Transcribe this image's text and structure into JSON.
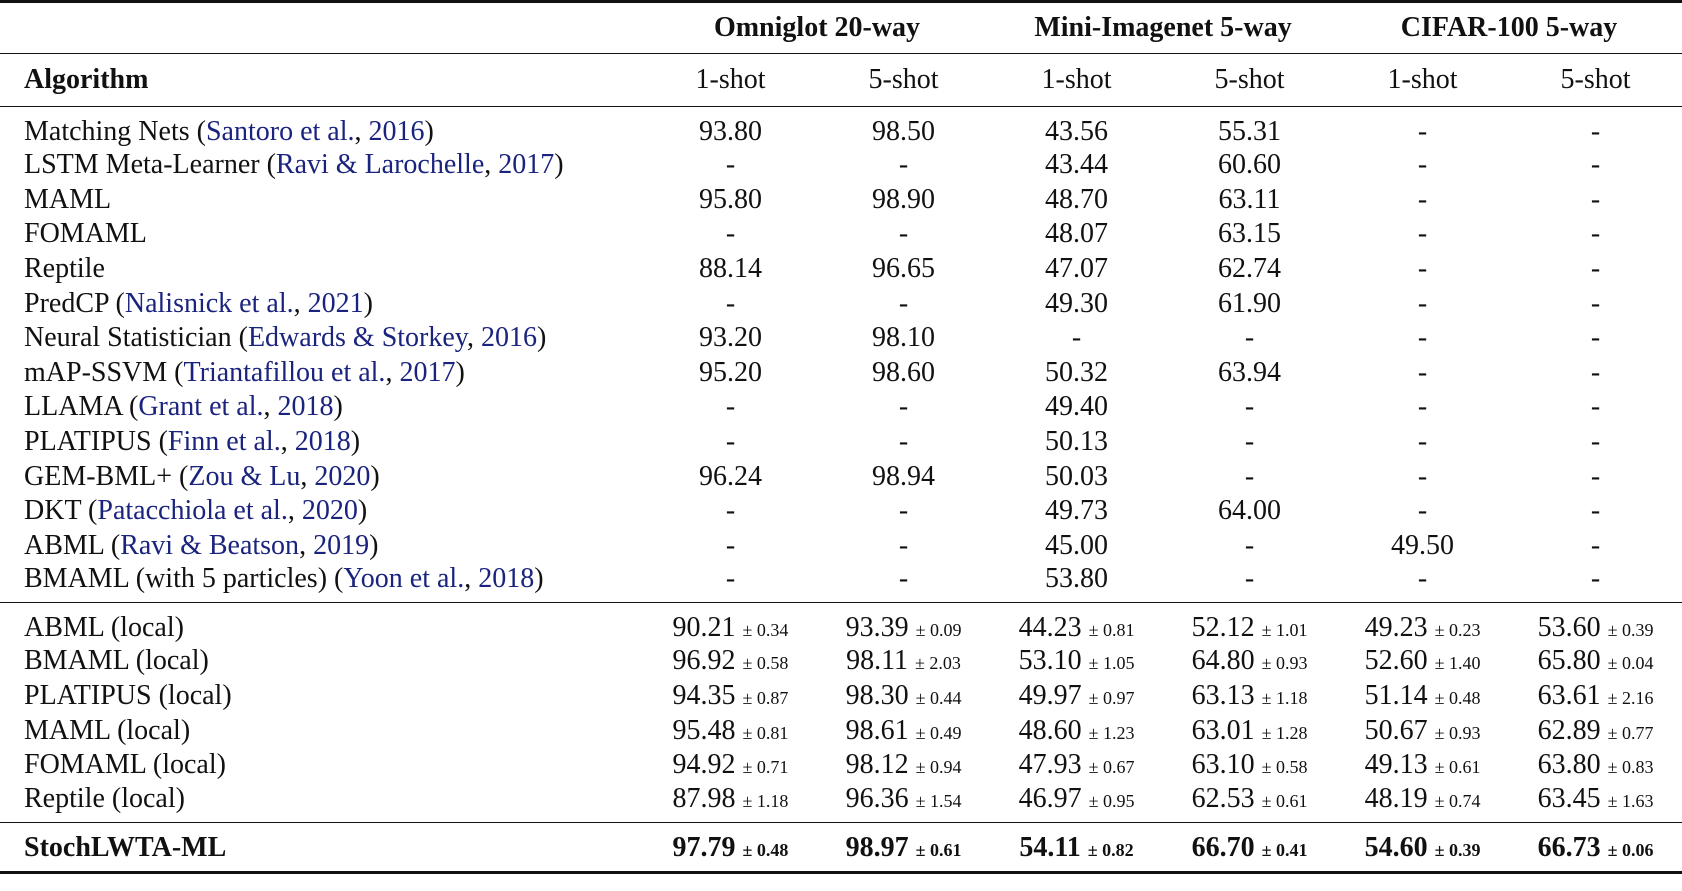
{
  "table": {
    "group_headers": [
      "Omniglot 20-way",
      "Mini-Imagenet 5-way",
      "CIFAR-100 5-way"
    ],
    "algorithm_header": "Algorithm",
    "shot_headers": [
      "1-shot",
      "5-shot",
      "1-shot",
      "5-shot",
      "1-shot",
      "5-shot"
    ],
    "sections": [
      {
        "rows": [
          {
            "method": "Matching Nets",
            "citation": {
              "authors": "Santoro et al.",
              "year": "2016"
            },
            "cells": [
              "93.80",
              "98.50",
              "43.56",
              "55.31",
              "-",
              "-"
            ]
          },
          {
            "method": "LSTM Meta-Learner",
            "citation": {
              "authors": "Ravi & Larochelle",
              "year": "2017"
            },
            "cells": [
              "-",
              "-",
              "43.44",
              "60.60",
              "-",
              "-"
            ]
          },
          {
            "method": "MAML",
            "cells": [
              "95.80",
              "98.90",
              "48.70",
              "63.11",
              "-",
              "-"
            ]
          },
          {
            "method": "FOMAML",
            "cells": [
              "-",
              "-",
              "48.07",
              "63.15",
              "-",
              "-"
            ]
          },
          {
            "method": "Reptile",
            "cells": [
              "88.14",
              "96.65",
              "47.07",
              "62.74",
              "-",
              "-"
            ]
          },
          {
            "method": "PredCP",
            "citation": {
              "authors": "Nalisnick et al.",
              "year": "2021"
            },
            "cells": [
              "-",
              "-",
              "49.30",
              "61.90",
              "-",
              "-"
            ]
          },
          {
            "method": "Neural Statistician",
            "citation": {
              "authors": "Edwards & Storkey",
              "year": "2016"
            },
            "cells": [
              "93.20",
              "98.10",
              "-",
              "-",
              "-",
              "-"
            ]
          },
          {
            "method": "mAP-SSVM",
            "citation": {
              "authors": "Triantafillou et al.",
              "year": "2017"
            },
            "cells": [
              "95.20",
              "98.60",
              "50.32",
              "63.94",
              "-",
              "-"
            ]
          },
          {
            "method": "LLAMA",
            "citation": {
              "authors": "Grant et al.",
              "year": "2018"
            },
            "cells": [
              "-",
              "-",
              "49.40",
              "-",
              "-",
              "-"
            ]
          },
          {
            "method": "PLATIPUS",
            "citation": {
              "authors": "Finn et al.",
              "year": "2018"
            },
            "cells": [
              "-",
              "-",
              "50.13",
              "-",
              "-",
              "-"
            ]
          },
          {
            "method": "GEM-BML+",
            "citation": {
              "authors": "Zou & Lu",
              "year": "2020"
            },
            "cells": [
              "96.24",
              "98.94",
              "50.03",
              "-",
              "-",
              "-"
            ]
          },
          {
            "method": "DKT",
            "citation": {
              "authors": "Patacchiola et al.",
              "year": "2020"
            },
            "cells": [
              "-",
              "-",
              "49.73",
              "64.00",
              "-",
              "-"
            ]
          },
          {
            "method": "ABML",
            "citation": {
              "authors": "Ravi & Beatson",
              "year": "2019"
            },
            "cells": [
              "-",
              "-",
              "45.00",
              "-",
              "49.50",
              "-"
            ]
          },
          {
            "method": "BMAML (with 5 particles)",
            "citation": {
              "authors": "Yoon et al.",
              "year": "2018"
            },
            "cells": [
              "-",
              "-",
              "53.80",
              "-",
              "-",
              "-"
            ]
          }
        ]
      },
      {
        "rows": [
          {
            "method": "ABML (local)",
            "cells": [
              {
                "value": "90.21",
                "std": "± 0.34"
              },
              {
                "value": "93.39",
                "std": "± 0.09"
              },
              {
                "value": "44.23",
                "std": "± 0.81"
              },
              {
                "value": "52.12",
                "std": "± 1.01"
              },
              {
                "value": "49.23",
                "std": "± 0.23"
              },
              {
                "value": "53.60",
                "std": "± 0.39"
              }
            ]
          },
          {
            "method": "BMAML (local)",
            "cells": [
              {
                "value": "96.92",
                "std": "± 0.58"
              },
              {
                "value": "98.11",
                "std": "± 2.03"
              },
              {
                "value": "53.10",
                "std": "± 1.05"
              },
              {
                "value": "64.80",
                "std": "± 0.93"
              },
              {
                "value": "52.60",
                "std": "± 1.40"
              },
              {
                "value": "65.80",
                "std": "± 0.04"
              }
            ]
          },
          {
            "method": "PLATIPUS (local)",
            "cells": [
              {
                "value": "94.35",
                "std": "± 0.87"
              },
              {
                "value": "98.30",
                "std": "± 0.44"
              },
              {
                "value": "49.97",
                "std": "± 0.97"
              },
              {
                "value": "63.13",
                "std": "± 1.18"
              },
              {
                "value": "51.14",
                "std": "± 0.48"
              },
              {
                "value": "63.61",
                "std": "± 2.16"
              }
            ]
          },
          {
            "method": "MAML (local)",
            "cells": [
              {
                "value": "95.48",
                "std": "± 0.81"
              },
              {
                "value": "98.61",
                "std": "± 0.49"
              },
              {
                "value": "48.60",
                "std": "± 1.23"
              },
              {
                "value": "63.01",
                "std": "± 1.28"
              },
              {
                "value": "50.67",
                "std": "± 0.93"
              },
              {
                "value": "62.89",
                "std": "± 0.77"
              }
            ]
          },
          {
            "method": "FOMAML (local)",
            "cells": [
              {
                "value": "94.92",
                "std": "± 0.71"
              },
              {
                "value": "98.12",
                "std": "± 0.94"
              },
              {
                "value": "47.93",
                "std": "± 0.67"
              },
              {
                "value": "63.10",
                "std": "± 0.58"
              },
              {
                "value": "49.13",
                "std": "± 0.61"
              },
              {
                "value": "63.80",
                "std": "± 0.83"
              }
            ]
          },
          {
            "method": "Reptile (local)",
            "cells": [
              {
                "value": "87.98",
                "std": "± 1.18"
              },
              {
                "value": "96.36",
                "std": "± 1.54"
              },
              {
                "value": "46.97",
                "std": "± 0.95"
              },
              {
                "value": "62.53",
                "std": "± 0.61"
              },
              {
                "value": "48.19",
                "std": "± 0.74"
              },
              {
                "value": "63.45",
                "std": "± 1.63"
              }
            ]
          }
        ]
      },
      {
        "rows": [
          {
            "method": "StochLWTA-ML",
            "bold": true,
            "cells": [
              {
                "value": "97.79",
                "std": "± 0.48"
              },
              {
                "value": "98.97",
                "std": "± 0.61"
              },
              {
                "value": "54.11",
                "std": "± 0.82"
              },
              {
                "value": "66.70",
                "std": "± 0.41"
              },
              {
                "value": "54.60",
                "std": "± 0.39"
              },
              {
                "value": "66.73",
                "std": "± 0.06"
              }
            ]
          }
        ]
      }
    ]
  }
}
